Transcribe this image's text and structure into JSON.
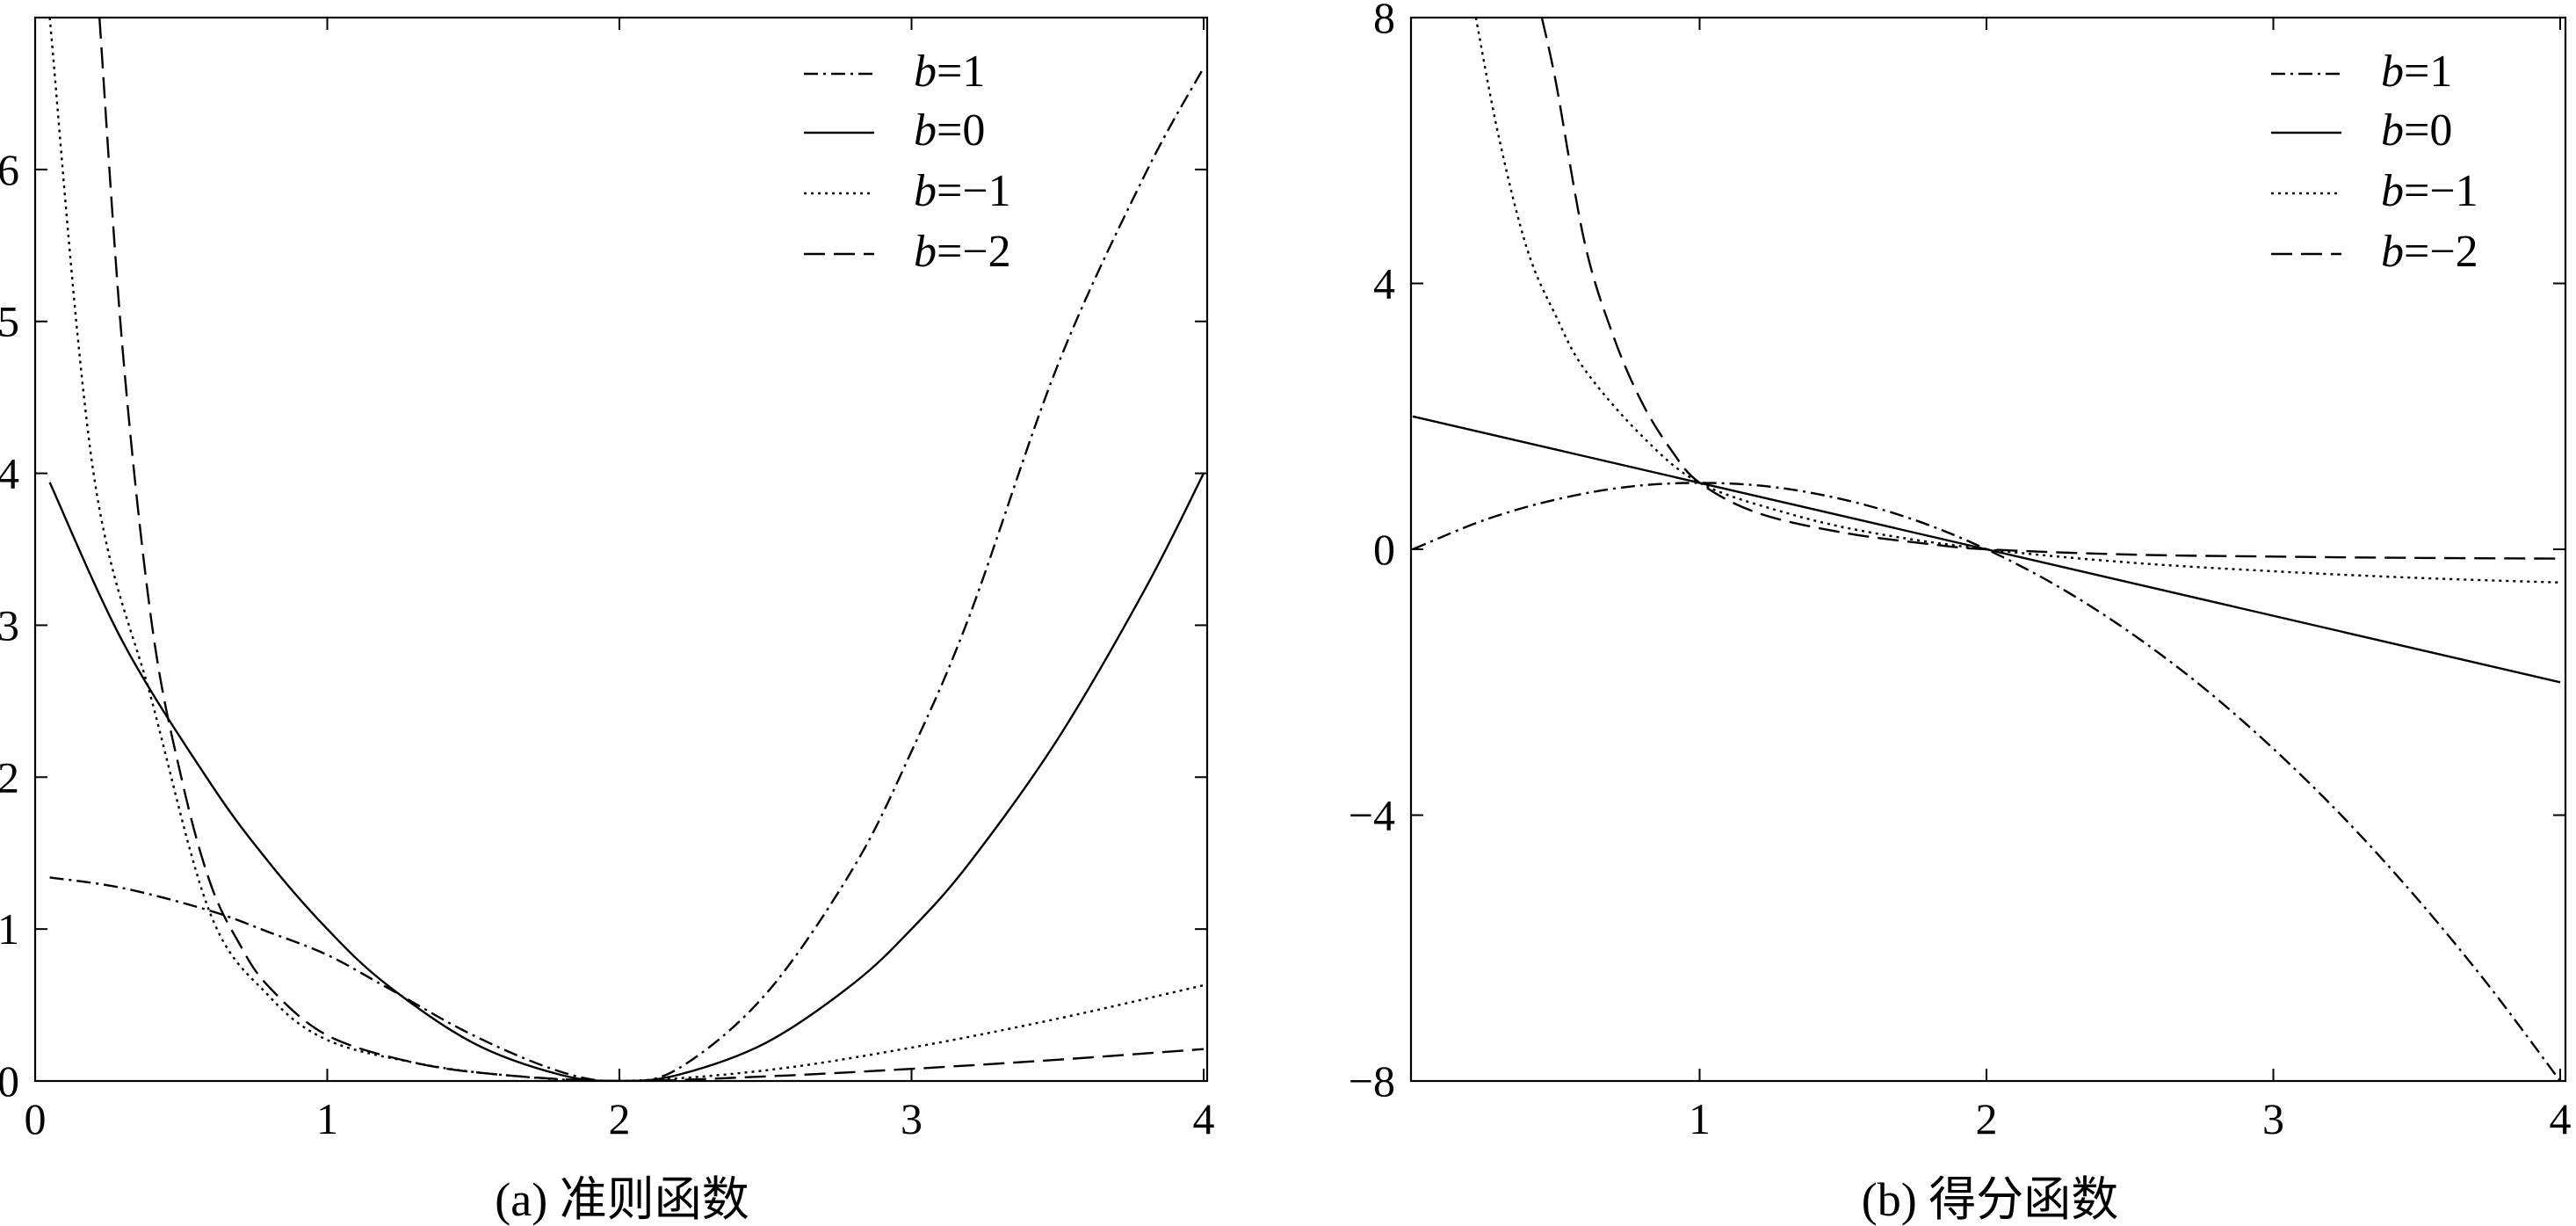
{
  "chart_data": [
    {
      "type": "line",
      "caption": "(a) 准则函数",
      "xlim": [
        0,
        4
      ],
      "ylim": [
        0,
        7
      ],
      "xticks": [
        0,
        1,
        2,
        3,
        4
      ],
      "yticks": [
        0,
        1,
        2,
        3,
        4,
        5,
        6
      ],
      "legend": {
        "position": "top-right"
      },
      "series": [
        {
          "name": "b=1",
          "var": "b",
          "val": "=1",
          "dash": "16,6,3,6",
          "x": [
            0.05,
            0.3,
            0.6,
            0.8,
            1.0,
            1.2,
            1.5,
            1.8,
            2.0,
            2.2,
            2.5,
            2.8,
            3.0,
            3.2,
            3.5,
            3.8,
            4.0
          ],
          "y": [
            1.34,
            1.27,
            1.12,
            0.98,
            0.83,
            0.62,
            0.3,
            0.06,
            0.0,
            0.08,
            0.57,
            1.4,
            2.17,
            3.07,
            4.71,
            5.97,
            6.67
          ]
        },
        {
          "name": "b=0",
          "var": "b",
          "val": "=0",
          "dash": "none",
          "x": [
            0.05,
            0.3,
            0.6,
            0.8,
            1.0,
            1.2,
            1.5,
            1.8,
            2.0,
            2.2,
            2.5,
            2.8,
            3.0,
            3.2,
            3.5,
            3.8,
            4.0
          ],
          "y": [
            3.94,
            2.89,
            1.96,
            1.44,
            1.0,
            0.64,
            0.25,
            0.04,
            0.0,
            0.04,
            0.25,
            0.64,
            1.0,
            1.44,
            2.25,
            3.24,
            4.0
          ]
        },
        {
          "name": "b=−1",
          "var": "b",
          "val": "=−1",
          "dash": "3,5",
          "x": [
            0.05,
            0.2,
            0.4,
            0.6,
            0.8,
            1.0,
            1.3,
            1.6,
            2.0,
            2.5,
            3.0,
            3.5,
            4.0
          ],
          "y": [
            7.0,
            4.0,
            2.5,
            1.1,
            0.56,
            0.27,
            0.12,
            0.04,
            0.0,
            0.07,
            0.22,
            0.41,
            0.63
          ]
        },
        {
          "name": "b=−2",
          "var": "b",
          "val": "=−2",
          "dash": "24,10",
          "x": [
            0.22,
            0.3,
            0.4,
            0.5,
            0.6,
            0.7,
            0.8,
            1.0,
            1.3,
            1.6,
            2.0,
            2.5,
            3.0,
            3.5,
            4.0
          ],
          "y": [
            7.0,
            4.8,
            3.0,
            2.0,
            1.3,
            0.9,
            0.62,
            0.3,
            0.12,
            0.04,
            0.0,
            0.03,
            0.08,
            0.14,
            0.21
          ]
        }
      ]
    },
    {
      "type": "line",
      "caption": "(b) 得分函数",
      "xlim": [
        0,
        4
      ],
      "ylim": [
        -8,
        8
      ],
      "xticks": [
        1,
        2,
        3,
        4
      ],
      "yticks": [
        -8,
        -4,
        0,
        4,
        8
      ],
      "legend": {
        "position": "top-right"
      },
      "series": [
        {
          "name": "b=1",
          "var": "b",
          "val": "=1",
          "dash": "16,6,3,6",
          "x": [
            0.0,
            0.25,
            0.5,
            0.75,
            1.0,
            1.25,
            1.5,
            1.75,
            2.0,
            2.25,
            2.5,
            2.75,
            3.0,
            3.25,
            3.5,
            3.75,
            4.0
          ],
          "y": [
            0.0,
            0.44,
            0.75,
            0.94,
            1.0,
            0.94,
            0.75,
            0.44,
            0.0,
            -0.56,
            -1.25,
            -2.06,
            -3.0,
            -4.06,
            -5.25,
            -6.56,
            -8.0
          ]
        },
        {
          "name": "b=0",
          "var": "b",
          "val": "=0",
          "dash": "none",
          "x": [
            0.0,
            4.0
          ],
          "y": [
            2.0,
            -2.0
          ]
        },
        {
          "name": "b=−1",
          "var": "b",
          "val": "=−1",
          "dash": "3,5",
          "x": [
            0.22,
            0.3,
            0.4,
            0.5,
            0.6,
            0.8,
            1.0,
            1.3,
            1.6,
            2.0,
            2.5,
            3.0,
            3.5,
            4.0
          ],
          "y": [
            8.0,
            6.2,
            4.5,
            3.5,
            2.7,
            1.7,
            1.0,
            0.55,
            0.25,
            0.0,
            -0.2,
            -0.33,
            -0.43,
            -0.5
          ]
        },
        {
          "name": "b=−2",
          "var": "b",
          "val": "=−2",
          "dash": "24,10",
          "x": [
            0.45,
            0.5,
            0.6,
            0.7,
            0.8,
            0.9,
            1.0,
            1.2,
            1.5,
            1.8,
            2.0,
            2.5,
            3.0,
            3.5,
            4.0
          ],
          "y": [
            8.0,
            7.0,
            4.6,
            3.2,
            2.2,
            1.5,
            1.0,
            0.55,
            0.25,
            0.08,
            0.0,
            -0.08,
            -0.11,
            -0.13,
            -0.14
          ]
        }
      ]
    }
  ]
}
